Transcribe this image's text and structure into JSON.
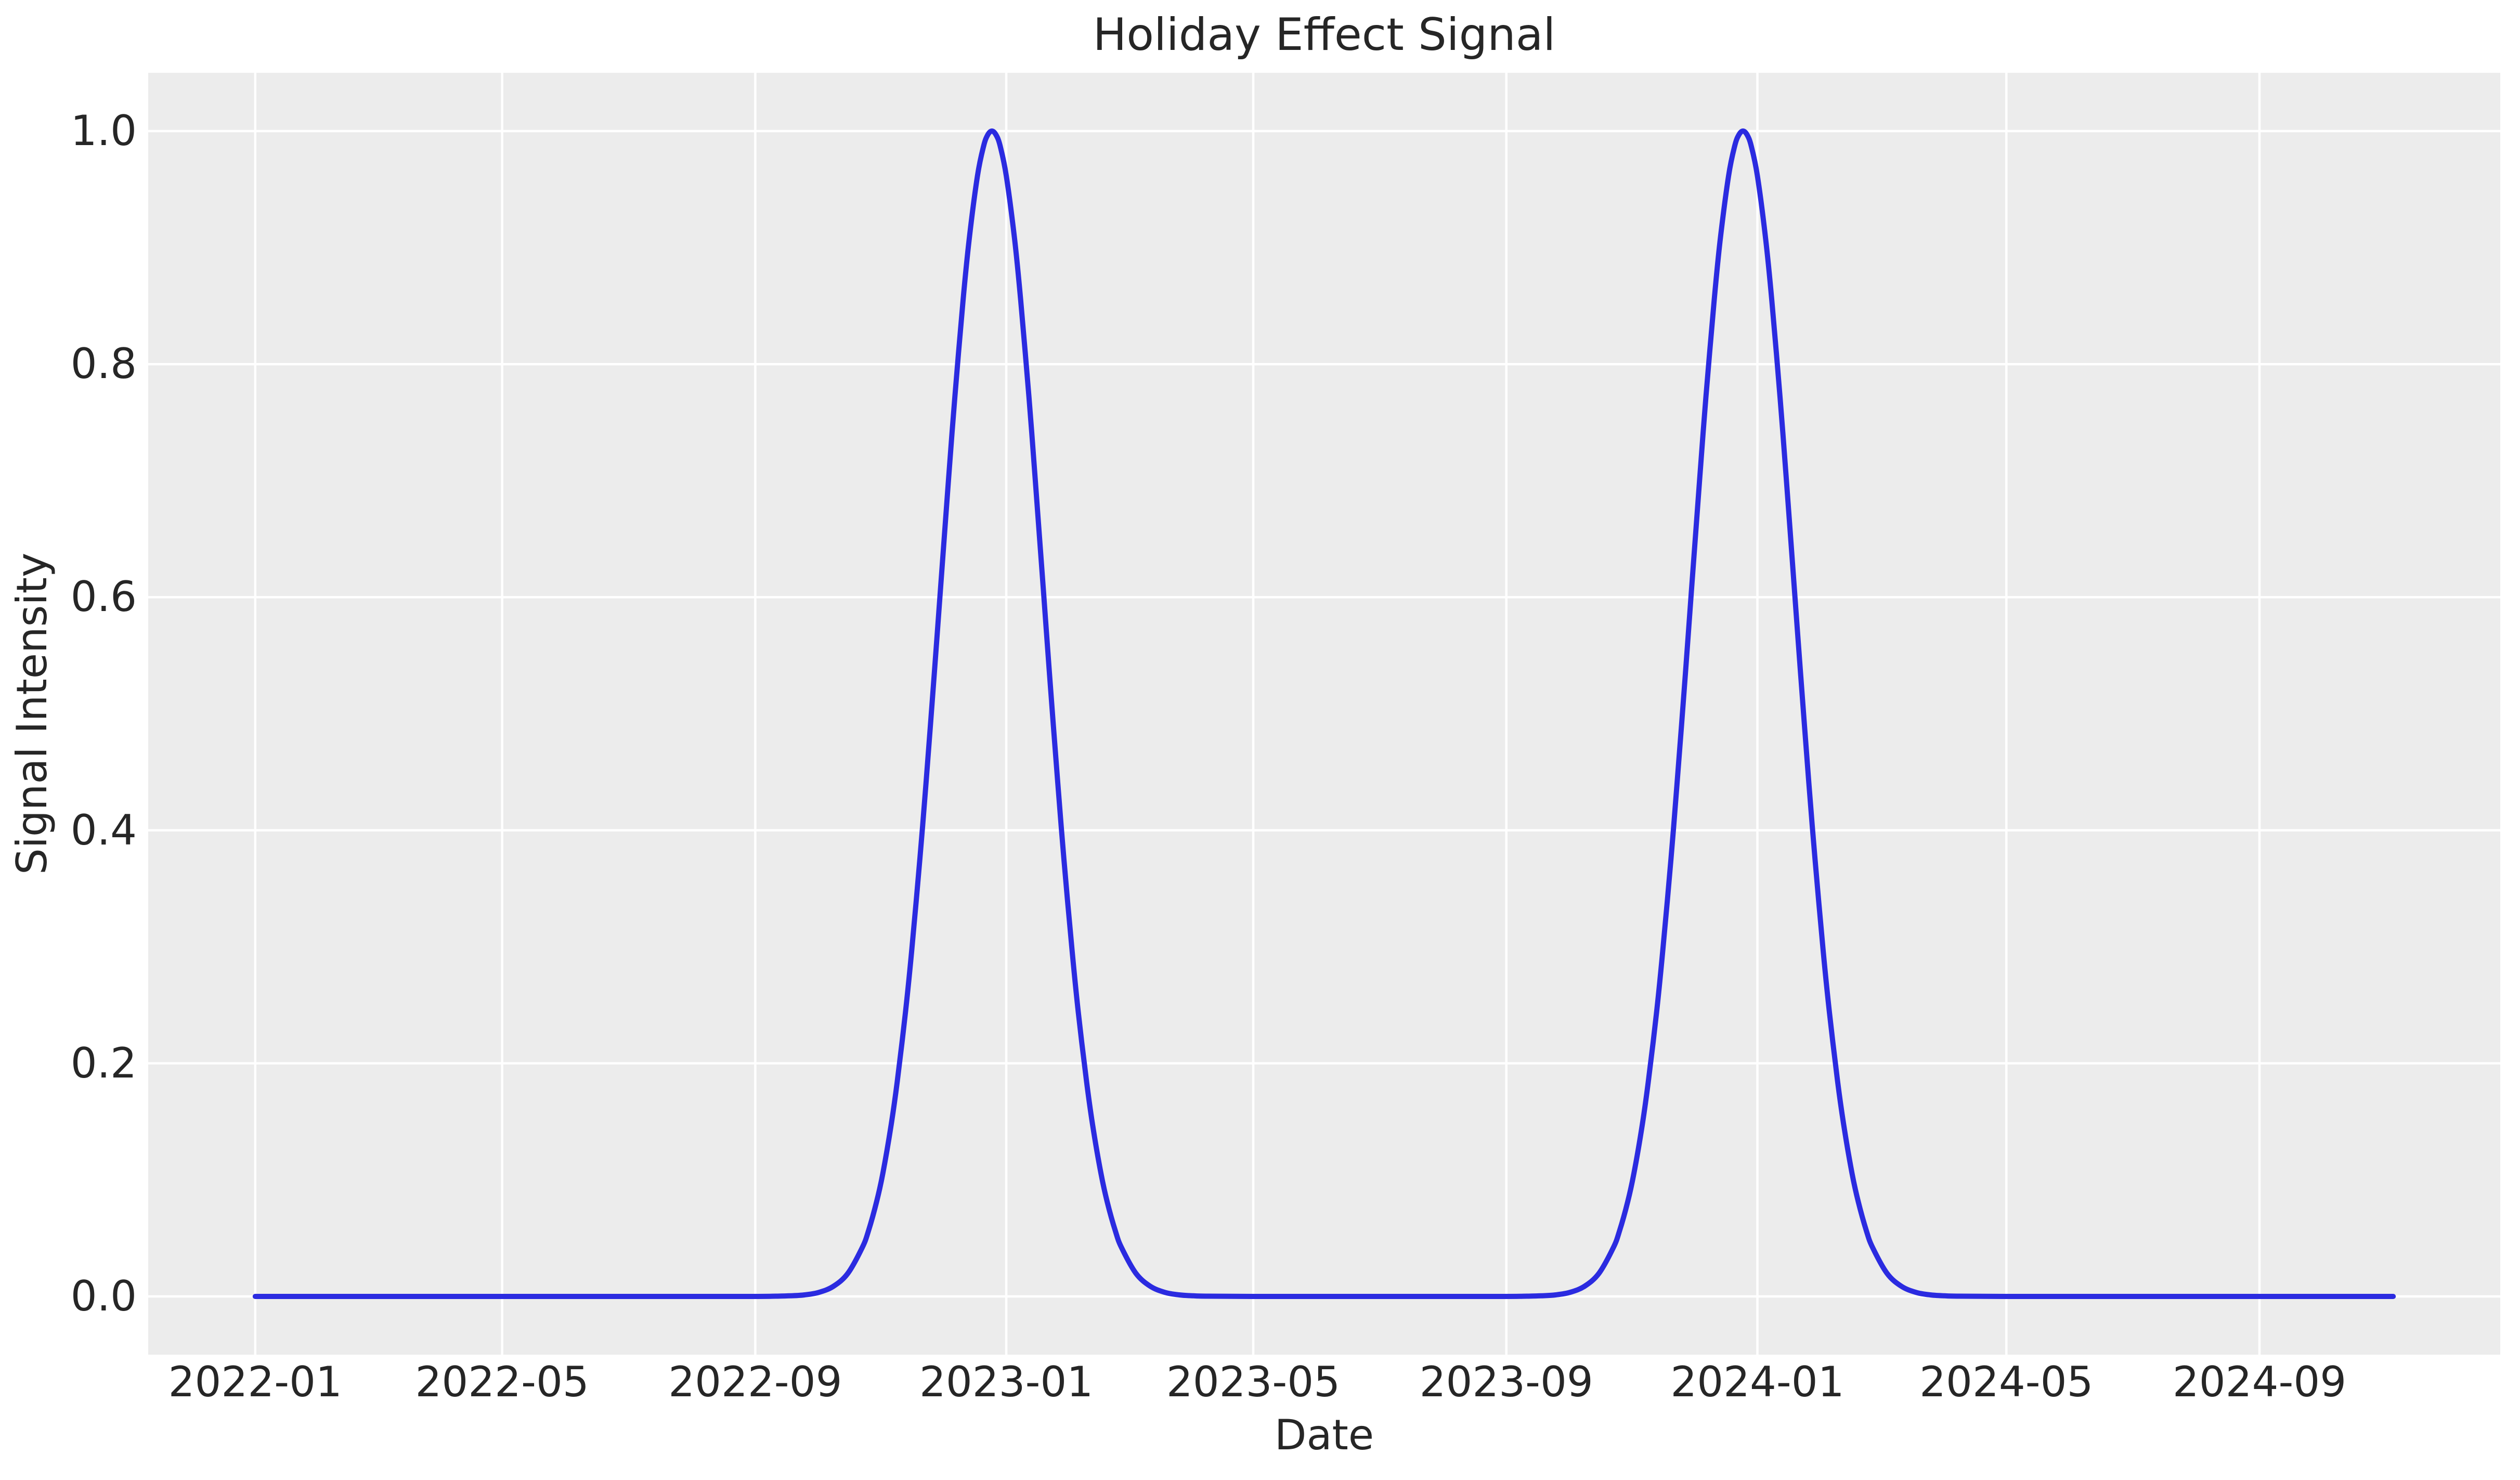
{
  "chart_data": {
    "type": "line",
    "title": "Holiday Effect Signal",
    "xlabel": "Date",
    "ylabel": "Signal Intensity",
    "grid": true,
    "legend": false,
    "ylim": [
      -0.05,
      1.05
    ],
    "xlim": [
      "2021-11-10",
      "2024-12-27"
    ],
    "y_ticks": {
      "values": [
        0.0,
        0.2,
        0.4,
        0.6,
        0.8,
        1.0
      ],
      "labels": [
        "0.0",
        "0.2",
        "0.4",
        "0.6",
        "0.8",
        "1.0"
      ]
    },
    "x_ticks": {
      "dates": [
        "2022-01-01",
        "2022-05-01",
        "2022-09-01",
        "2023-01-01",
        "2023-05-01",
        "2023-09-01",
        "2024-01-01",
        "2024-05-01",
        "2024-09-01"
      ],
      "labels": [
        "2022-01",
        "2022-05",
        "2022-09",
        "2023-01",
        "2023-05",
        "2023-09",
        "2024-01",
        "2024-05",
        "2024-09"
      ]
    },
    "style": {
      "figure_bg": "#ffffff",
      "axes_bg": "#ececec",
      "grid_color": "#ffffff",
      "grid_width": 4.5,
      "text_color": "#262626",
      "line_color": "#2b2be0",
      "line_width": 10
    },
    "peaks": [
      {
        "date": "2022-12-25",
        "value": 1.0
      },
      {
        "date": "2023-12-25",
        "value": 1.0
      }
    ],
    "series": [
      {
        "name": "holiday_effect_signal",
        "points": [
          [
            "2022-01-01",
            0
          ],
          [
            "2022-02-01",
            0
          ],
          [
            "2022-03-01",
            0
          ],
          [
            "2022-04-01",
            0
          ],
          [
            "2022-05-01",
            0
          ],
          [
            "2022-06-01",
            0
          ],
          [
            "2022-07-01",
            0
          ],
          [
            "2022-08-01",
            0
          ],
          [
            "2022-09-01",
            0
          ],
          [
            "2022-09-11",
            0.0002
          ],
          [
            "2022-09-18",
            0.0005
          ],
          [
            "2022-09-25",
            0.0013
          ],
          [
            "2022-10-02",
            0.0035
          ],
          [
            "2022-10-09",
            0.0087
          ],
          [
            "2022-10-16",
            0.0198
          ],
          [
            "2022-10-23",
            0.0419
          ],
          [
            "2022-10-26",
            0.0561
          ],
          [
            "2022-10-30",
            0.0814
          ],
          [
            "2022-11-02",
            0.1055
          ],
          [
            "2022-11-06",
            0.1466
          ],
          [
            "2022-11-09",
            0.1843
          ],
          [
            "2022-11-13",
            0.2437
          ],
          [
            "2022-11-16",
            0.2961
          ],
          [
            "2022-11-20",
            0.3753
          ],
          [
            "2022-11-23",
            0.4408
          ],
          [
            "2022-11-27",
            0.5341
          ],
          [
            "2022-11-30",
            0.6065
          ],
          [
            "2022-12-04",
            0.7027
          ],
          [
            "2022-12-07",
            0.7718
          ],
          [
            "2022-12-11",
            0.8548
          ],
          [
            "2022-12-14",
            0.9077
          ],
          [
            "2022-12-18",
            0.9616
          ],
          [
            "2022-12-21",
            0.9873
          ],
          [
            "2022-12-23",
            0.9968
          ],
          [
            "2022-12-25",
            1.0
          ],
          [
            "2022-12-27",
            0.9968
          ],
          [
            "2022-12-29",
            0.9873
          ],
          [
            "2023-01-01",
            0.9616
          ],
          [
            "2023-01-05",
            0.9077
          ],
          [
            "2023-01-08",
            0.8548
          ],
          [
            "2023-01-12",
            0.7718
          ],
          [
            "2023-01-15",
            0.7027
          ],
          [
            "2023-01-19",
            0.6065
          ],
          [
            "2023-01-22",
            0.5341
          ],
          [
            "2023-01-26",
            0.4408
          ],
          [
            "2023-01-29",
            0.3753
          ],
          [
            "2023-02-02",
            0.2961
          ],
          [
            "2023-02-05",
            0.2437
          ],
          [
            "2023-02-09",
            0.1843
          ],
          [
            "2023-02-12",
            0.1466
          ],
          [
            "2023-02-16",
            0.1055
          ],
          [
            "2023-02-19",
            0.0814
          ],
          [
            "2023-02-23",
            0.0561
          ],
          [
            "2023-02-26",
            0.0419
          ],
          [
            "2023-03-05",
            0.0198
          ],
          [
            "2023-03-12",
            0.0087
          ],
          [
            "2023-03-19",
            0.0035
          ],
          [
            "2023-03-26",
            0.0013
          ],
          [
            "2023-04-02",
            0.0005
          ],
          [
            "2023-04-09",
            0.0002
          ],
          [
            "2023-05-01",
            0
          ],
          [
            "2023-06-01",
            0
          ],
          [
            "2023-07-01",
            0
          ],
          [
            "2023-08-01",
            0
          ],
          [
            "2023-09-01",
            0
          ],
          [
            "2023-09-11",
            0.0002
          ],
          [
            "2023-09-18",
            0.0005
          ],
          [
            "2023-09-25",
            0.0013
          ],
          [
            "2023-10-02",
            0.0035
          ],
          [
            "2023-10-09",
            0.0087
          ],
          [
            "2023-10-16",
            0.0198
          ],
          [
            "2023-10-23",
            0.0419
          ],
          [
            "2023-10-26",
            0.0561
          ],
          [
            "2023-10-30",
            0.0814
          ],
          [
            "2023-11-02",
            0.1055
          ],
          [
            "2023-11-06",
            0.1466
          ],
          [
            "2023-11-09",
            0.1843
          ],
          [
            "2023-11-13",
            0.2437
          ],
          [
            "2023-11-16",
            0.2961
          ],
          [
            "2023-11-20",
            0.3753
          ],
          [
            "2023-11-23",
            0.4408
          ],
          [
            "2023-11-27",
            0.5341
          ],
          [
            "2023-11-30",
            0.6065
          ],
          [
            "2023-12-04",
            0.7027
          ],
          [
            "2023-12-07",
            0.7718
          ],
          [
            "2023-12-11",
            0.8548
          ],
          [
            "2023-12-14",
            0.9077
          ],
          [
            "2023-12-18",
            0.9616
          ],
          [
            "2023-12-21",
            0.9873
          ],
          [
            "2023-12-23",
            0.9968
          ],
          [
            "2023-12-25",
            1.0
          ],
          [
            "2023-12-27",
            0.9968
          ],
          [
            "2023-12-29",
            0.9873
          ],
          [
            "2024-01-01",
            0.9616
          ],
          [
            "2024-01-05",
            0.9077
          ],
          [
            "2024-01-08",
            0.8548
          ],
          [
            "2024-01-12",
            0.7718
          ],
          [
            "2024-01-15",
            0.7027
          ],
          [
            "2024-01-19",
            0.6065
          ],
          [
            "2024-01-22",
            0.5341
          ],
          [
            "2024-01-26",
            0.4408
          ],
          [
            "2024-01-29",
            0.3753
          ],
          [
            "2024-02-02",
            0.2961
          ],
          [
            "2024-02-05",
            0.2437
          ],
          [
            "2024-02-09",
            0.1843
          ],
          [
            "2024-02-12",
            0.1466
          ],
          [
            "2024-02-16",
            0.1055
          ],
          [
            "2024-02-19",
            0.0814
          ],
          [
            "2024-02-23",
            0.0561
          ],
          [
            "2024-02-26",
            0.0419
          ],
          [
            "2024-03-04",
            0.0198
          ],
          [
            "2024-03-11",
            0.0087
          ],
          [
            "2024-03-18",
            0.0035
          ],
          [
            "2024-03-25",
            0.0013
          ],
          [
            "2024-04-01",
            0.0005
          ],
          [
            "2024-04-08",
            0.0002
          ],
          [
            "2024-05-01",
            0
          ],
          [
            "2024-06-01",
            0
          ],
          [
            "2024-07-01",
            0
          ],
          [
            "2024-08-01",
            0
          ],
          [
            "2024-09-01",
            0
          ],
          [
            "2024-10-01",
            0
          ],
          [
            "2024-11-05",
            0
          ]
        ]
      }
    ]
  }
}
